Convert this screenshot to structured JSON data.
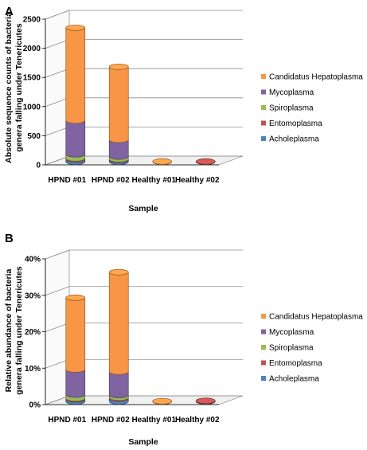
{
  "chart_data": [
    {
      "panel": "A",
      "type": "bar",
      "stacked": true,
      "style": "3d-cylinder",
      "categories": [
        "HPND #01",
        "HPND #02",
        "Healthy #01",
        "Healthy #02"
      ],
      "xlabel": "Sample",
      "ylabel": [
        "Absolute sequence counts of bacteria",
        "genera falling under Tenericutes"
      ],
      "ylim": [
        0,
        2500
      ],
      "yticks": [
        0,
        500,
        1000,
        1500,
        2000,
        2500
      ],
      "ytick_labels": [
        "0",
        "500",
        "1000",
        "1500",
        "2000",
        "2500"
      ],
      "grid": true,
      "legend_position": "right",
      "series": [
        {
          "name": "Acholeplasma",
          "color": "#4f81bd",
          "values": [
            40,
            30,
            0,
            0
          ]
        },
        {
          "name": "Entomoplasma",
          "color": "#c0504d",
          "values": [
            20,
            15,
            0,
            5
          ]
        },
        {
          "name": "Spiroplasma",
          "color": "#9bbb59",
          "values": [
            70,
            45,
            0,
            0
          ]
        },
        {
          "name": "Mycoplasma",
          "color": "#8064a2",
          "values": [
            580,
            290,
            0,
            0
          ]
        },
        {
          "name": "Candidatus Hepatoplasma",
          "color": "#f79646",
          "values": [
            1590,
            1250,
            5,
            0
          ]
        }
      ]
    },
    {
      "panel": "B",
      "type": "bar",
      "stacked": true,
      "style": "3d-cylinder",
      "categories": [
        "HPND #01",
        "HPND #02",
        "Healthy #01",
        "Healthy #02"
      ],
      "xlabel": "Sample",
      "ylabel": [
        "Relative abundance of bacteria",
        "genera falling under Tenericutes"
      ],
      "ylim": [
        0,
        40
      ],
      "yticks": [
        0,
        10,
        20,
        30,
        40
      ],
      "ytick_labels": [
        "0%",
        "10%",
        "20%",
        "30%",
        "40%"
      ],
      "grid": true,
      "legend_position": "right",
      "series": [
        {
          "name": "Acholeplasma",
          "color": "#4f81bd",
          "values": [
            0.6,
            0.8,
            0,
            0.1
          ]
        },
        {
          "name": "Entomoplasma",
          "color": "#c0504d",
          "values": [
            0.3,
            0.3,
            0,
            0.1
          ]
        },
        {
          "name": "Spiroplasma",
          "color": "#9bbb59",
          "values": [
            1.0,
            0.7,
            0,
            0
          ]
        },
        {
          "name": "Mycoplasma",
          "color": "#8064a2",
          "values": [
            6.9,
            6.4,
            0,
            0
          ]
        },
        {
          "name": "Candidatus Hepatoplasma",
          "color": "#f79646",
          "values": [
            19.7,
            27.3,
            0.1,
            0
          ]
        }
      ]
    }
  ]
}
